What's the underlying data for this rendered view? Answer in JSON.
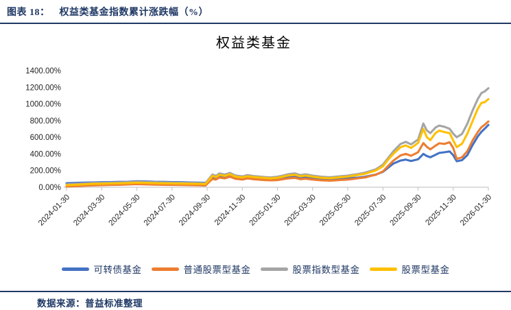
{
  "figure_header": {
    "label": "图表 18：",
    "title": "权益类基金指数累计涨跌幅（%）"
  },
  "footer": {
    "source_label": "数据来源：普益标准整理"
  },
  "colors": {
    "accent_navy": "#1F3864",
    "axis_gray": "#c8c8c8",
    "tick_text": "#262626"
  },
  "chart_data": {
    "type": "line",
    "title": "权益类基金",
    "xlabel": "",
    "ylabel": "",
    "grid": false,
    "legend_position": "bottom",
    "ylim": [
      0,
      1400
    ],
    "y_tick_step": 200,
    "y_tick_suffix": "%",
    "x_unit": "months since 2024-01-30",
    "x_tick_positions": [
      0,
      2,
      4,
      6,
      8,
      10,
      12,
      14,
      16,
      18,
      20,
      22,
      24
    ],
    "x_tick_labels": [
      "2024-01-30",
      "2024-03-30",
      "2024-05-30",
      "2024-07-30",
      "2024-09-30",
      "2024-11-30",
      "2025-01-30",
      "2025-03-30",
      "2025-05-30",
      "2025-07-30",
      "2025-09-30",
      "2025-11-30",
      "2026-01-30"
    ],
    "x": [
      0,
      0.5,
      1,
      1.5,
      2,
      2.5,
      3,
      3.5,
      4,
      4.5,
      5,
      5.5,
      6,
      6.5,
      7,
      7.5,
      7.9,
      8.1,
      8.3,
      8.5,
      8.7,
      9,
      9.3,
      9.6,
      10,
      10.3,
      10.6,
      11,
      11.3,
      11.6,
      12,
      12.3,
      12.6,
      13,
      13.3,
      13.6,
      14,
      14.5,
      15,
      15.5,
      16,
      16.3,
      16.6,
      17,
      17.3,
      17.6,
      18,
      18.3,
      18.6,
      19,
      19.3,
      19.6,
      20,
      20.3,
      20.5,
      20.7,
      21,
      21.2,
      21.5,
      21.8,
      22,
      22.2,
      22.5,
      22.8,
      23.1,
      23.4,
      23.6,
      23.8,
      24
    ],
    "series": [
      {
        "name": "可转债基金",
        "color": "#4472C4",
        "values": [
          48,
          52,
          55,
          58,
          60,
          62,
          64,
          66,
          72,
          70,
          66,
          64,
          62,
          60,
          58,
          55,
          52,
          90,
          120,
          110,
          128,
          122,
          138,
          118,
          110,
          122,
          114,
          108,
          104,
          100,
          106,
          112,
          120,
          126,
          114,
          120,
          110,
          100,
          96,
          102,
          106,
          112,
          116,
          126,
          140,
          152,
          185,
          235,
          285,
          320,
          332,
          315,
          335,
          400,
          375,
          360,
          390,
          412,
          420,
          430,
          385,
          312,
          325,
          385,
          505,
          610,
          665,
          705,
          748
        ]
      },
      {
        "name": "普通股票型基金",
        "color": "#ED7D31",
        "values": [
          8,
          13,
          18,
          22,
          25,
          28,
          30,
          33,
          38,
          35,
          31,
          29,
          28,
          27,
          25,
          23,
          20,
          62,
          100,
          92,
          116,
          106,
          126,
          102,
          92,
          106,
          97,
          90,
          86,
          82,
          86,
          96,
          106,
          112,
          96,
          102,
          92,
          82,
          78,
          86,
          92,
          100,
          108,
          118,
          136,
          150,
          190,
          255,
          320,
          382,
          400,
          378,
          420,
          530,
          485,
          455,
          500,
          528,
          520,
          540,
          470,
          340,
          360,
          432,
          560,
          662,
          720,
          752,
          790
        ]
      },
      {
        "name": "股票指数型基金",
        "color": "#A5A5A5",
        "values": [
          35,
          40,
          45,
          50,
          52,
          55,
          58,
          60,
          66,
          63,
          59,
          57,
          55,
          53,
          51,
          49,
          46,
          100,
          152,
          136,
          166,
          152,
          172,
          142,
          130,
          146,
          136,
          128,
          122,
          118,
          126,
          140,
          156,
          166,
          146,
          156,
          140,
          126,
          120,
          130,
          140,
          150,
          160,
          176,
          196,
          216,
          272,
          352,
          432,
          520,
          545,
          515,
          572,
          765,
          682,
          650,
          718,
          740,
          726,
          702,
          642,
          600,
          640,
          762,
          920,
          1060,
          1130,
          1152,
          1188
        ]
      },
      {
        "name": "股票型基金",
        "color": "#FFC000",
        "values": [
          25,
          30,
          35,
          40,
          42,
          45,
          47,
          50,
          55,
          52,
          49,
          47,
          45,
          44,
          42,
          40,
          38,
          86,
          136,
          122,
          148,
          136,
          156,
          128,
          118,
          131,
          123,
          116,
          110,
          106,
          113,
          126,
          141,
          149,
          131,
          140,
          126,
          113,
          108,
          118,
          128,
          138,
          148,
          162,
          182,
          202,
          252,
          332,
          402,
          480,
          502,
          472,
          532,
          700,
          602,
          565,
          652,
          680,
          662,
          650,
          562,
          482,
          522,
          642,
          792,
          942,
          1012,
          1022,
          1058
        ]
      }
    ]
  }
}
